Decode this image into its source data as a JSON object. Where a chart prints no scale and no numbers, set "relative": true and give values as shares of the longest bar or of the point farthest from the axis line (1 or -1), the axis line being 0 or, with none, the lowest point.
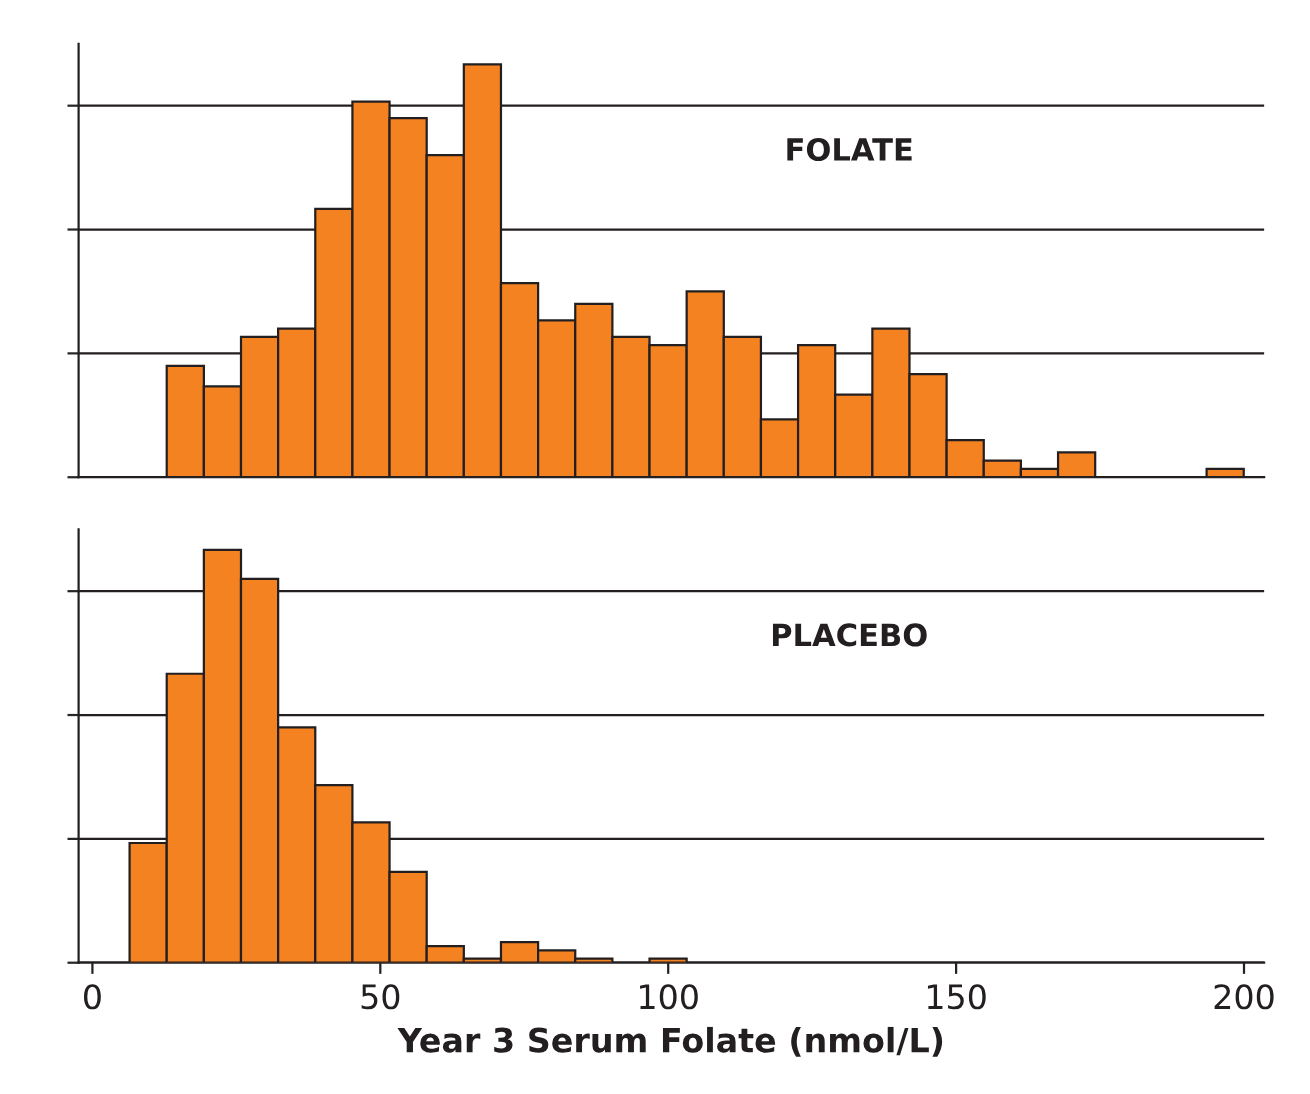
{
  "chart_data": [
    {
      "type": "bar",
      "relative": true,
      "color": "#f58220",
      "annotations": [
        "FOLATE"
      ],
      "tick_labels": false,
      "grid": "y",
      "xlim": [
        -2.4,
        203.5
      ],
      "xticks": [
        0,
        50,
        100,
        150,
        200
      ],
      "x": [
        16.13,
        22.58,
        29.03,
        35.48,
        41.93,
        48.38,
        54.83,
        61.28,
        67.73,
        74.18,
        80.63,
        87.08,
        93.53,
        99.98,
        106.43,
        112.88,
        119.33,
        125.78,
        132.23,
        138.68,
        145.13,
        151.58,
        158.03,
        164.48,
        170.93,
        196.73
      ],
      "values": [
        0.27,
        0.22,
        0.34,
        0.36,
        0.65,
        0.91,
        0.87,
        0.78,
        1,
        0.47,
        0.38,
        0.42,
        0.34,
        0.32,
        0.45,
        0.34,
        0.14,
        0.32,
        0.2,
        0.36,
        0.25,
        0.09,
        0.04,
        0.02,
        0.06,
        0.02
      ]
    },
    {
      "type": "bar",
      "relative": true,
      "color": "#f58220",
      "annotations": [
        "PLACEBO"
      ],
      "tick_labels": "x",
      "grid": "y",
      "xlim": [
        -2.4,
        203.5
      ],
      "xticks": [
        0,
        50,
        100,
        150,
        200
      ],
      "xlabel": "Year 3 Serum Folate (nmol/L)",
      "x": [
        9.68,
        16.13,
        22.58,
        29.03,
        35.48,
        41.93,
        48.38,
        54.83,
        61.28,
        67.73,
        74.18,
        80.63,
        87.08,
        99.98
      ],
      "values": [
        0.29,
        0.7,
        1,
        0.93,
        0.57,
        0.43,
        0.34,
        0.22,
        0.04,
        0.01,
        0.05,
        0.03,
        0.01,
        0.01
      ]
    }
  ]
}
